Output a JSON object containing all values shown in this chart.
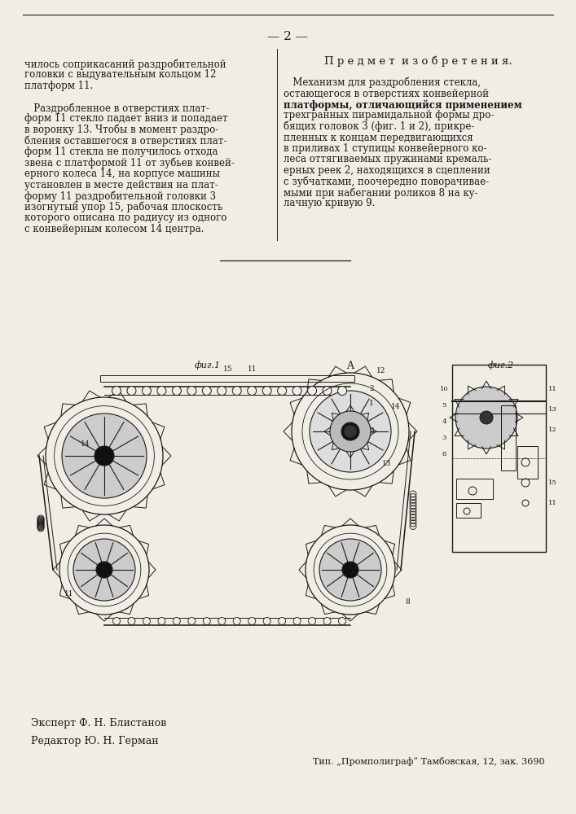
{
  "page_number": "2",
  "bg_color": "#f0ede4",
  "line_color": "#1a1a1a",
  "text_color": "#1a1a1a",
  "left_col_lines": [
    "чилось соприкасаний раздробительной",
    "головки с выдувательным кольцом 12",
    "платформ 11.",
    "",
    "   Раздробленное в отверстиях плат-",
    "форм 11 стекло падает вниз и попадает",
    "в воронку 13. Чтобы в момент раздро-",
    "бления оставшегося в отверстиях плат-",
    "форм 11 стекла не получилось отхода",
    "звена с платформой 11 от зубьев конвей-",
    "ерного колеса 14, на корпусе машины",
    "установлен в месте действия на плат-",
    "форму 11 раздробительной головки 3",
    "изогнутый упор 15, рабочая плоскость",
    "которого описана по радиусу из одного",
    "с конвейерным колесом 14 центра."
  ],
  "right_col_title": "П р е д м е т  и з о б р е т е н и я.",
  "right_col_lines": [
    "   Механизм для раздробления стекла,",
    "остающегося в отверстиях конвейерной",
    "платформы, отличающийся применением",
    "трехгранных пирамидальной формы дро-",
    "бящих головок 3 (фиг. 1 и 2), прикре-",
    "пленных к концам передвигающихся",
    "в приливах 1 ступицы конвейерного ко-",
    "леса оттягиваемых пружинами кремаль-",
    "ерных реек 2, находящихся в сцеплении",
    "с зубчатками, поочередно поворачивае-",
    "мыми при набегании роликов 8 на ку-",
    "лачную кривую 9."
  ],
  "bold_lines": [
    2
  ],
  "fig1_label": "фиг.1",
  "fig2_label": "фиг.2",
  "label_A": "A",
  "expert_line": "Эксперт Ф. Н. Блистанов",
  "editor_line": "Редактор Ю. Н. Герман",
  "publisher_line": "Тип. „Промполиграф“ Тамбовская, 12, зак. 3690",
  "font_size_body": 8.5,
  "font_size_title": 9.5
}
